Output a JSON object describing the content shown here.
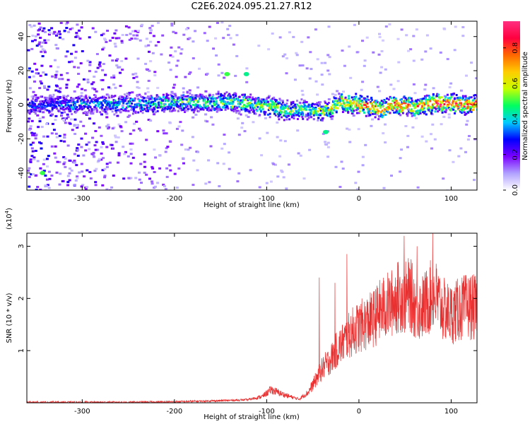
{
  "title": "C2E6.2024.095.21.27.R12",
  "chart_data": [
    {
      "type": "heatmap",
      "title": "C2E6.2024.095.21.27.R12",
      "xlabel": "Height of straight line (km)",
      "ylabel": "Frequency (Hz)",
      "xlim": [
        -360,
        128
      ],
      "ylim": [
        -50,
        49
      ],
      "xticks": [
        -300,
        -200,
        -100,
        0,
        100
      ],
      "yticks": [
        -40,
        -20,
        0,
        20,
        40
      ],
      "colorbar": {
        "label": "Normalized spectral amplitude",
        "range": [
          0.0,
          0.95
        ],
        "ticks": [
          0.0,
          0.2,
          0.4,
          0.6,
          0.8
        ],
        "colors": [
          "#ffffff",
          "#b0a0ff",
          "#7a00ff",
          "#0000ff",
          "#00ccff",
          "#00ff60",
          "#c8ff00",
          "#ffcc00",
          "#ff6600",
          "#ff0040",
          "#ff3080"
        ]
      },
      "ridge": {
        "description": "main spectral line near 0 Hz",
        "x": [
          -360,
          -300,
          -250,
          -200,
          -150,
          -120,
          -100,
          -80,
          -60,
          -40,
          -20,
          0,
          20,
          40,
          60,
          80,
          100,
          128
        ],
        "freq_hz": [
          0,
          1,
          1,
          2,
          2,
          1,
          0,
          -3,
          -2,
          -4,
          2,
          1,
          -2,
          1,
          -1,
          2,
          1,
          1
        ],
        "amplitude": [
          0.35,
          0.4,
          0.45,
          0.5,
          0.55,
          0.6,
          0.65,
          0.6,
          0.55,
          0.6,
          0.75,
          0.8,
          0.85,
          0.85,
          0.8,
          0.9,
          0.92,
          0.85
        ]
      },
      "spots": [
        {
          "x": -143,
          "freq_hz": 18,
          "amplitude": 0.5
        },
        {
          "x": -122,
          "freq_hz": 18,
          "amplitude": 0.45
        },
        {
          "x": -343,
          "freq_hz": -40,
          "amplitude": 0.5
        },
        {
          "x": -36,
          "freq_hz": -16,
          "amplitude": 0.45
        }
      ]
    },
    {
      "type": "line",
      "xlabel": "Height of straight line (km)",
      "ylabel": "SNR (10 * v/v)",
      "y_multiplier_label": "(x10",
      "y_multiplier_exp": "4",
      "y_multiplier_close": ")",
      "xlim": [
        -360,
        128
      ],
      "ylim": [
        0,
        3.25
      ],
      "xticks": [
        -300,
        -200,
        -100,
        0,
        100
      ],
      "yticks": [
        1,
        2,
        3
      ],
      "color": "#e83030",
      "series": [
        {
          "name": "SNR",
          "x": [
            -360,
            -300,
            -250,
            -200,
            -150,
            -120,
            -105,
            -95,
            -85,
            -75,
            -65,
            -55,
            -48,
            -42,
            -35,
            -30,
            -25,
            -20,
            -15,
            -10,
            -5,
            0,
            5,
            10,
            15,
            20,
            25,
            30,
            35,
            40,
            45,
            50,
            55,
            60,
            65,
            70,
            75,
            80,
            85,
            90,
            95,
            100,
            110,
            120,
            128
          ],
          "y": [
            0.01,
            0.01,
            0.01,
            0.02,
            0.04,
            0.06,
            0.12,
            0.25,
            0.18,
            0.12,
            0.07,
            0.2,
            0.4,
            0.6,
            0.75,
            0.85,
            1.0,
            1.1,
            1.2,
            1.3,
            1.4,
            1.45,
            1.5,
            1.55,
            1.6,
            1.7,
            1.8,
            1.85,
            1.9,
            2.0,
            2.05,
            2.0,
            2.1,
            1.9,
            1.8,
            1.85,
            1.95,
            2.1,
            2.0,
            1.8,
            1.75,
            1.7,
            1.8,
            1.85,
            1.8
          ],
          "peaks": [
            {
              "x": -43,
              "y": 2.4
            },
            {
              "x": -26,
              "y": 2.3
            },
            {
              "x": -13,
              "y": 2.85
            },
            {
              "x": 49,
              "y": 3.2
            },
            {
              "x": 63,
              "y": 3.0
            },
            {
              "x": 80,
              "y": 3.25
            }
          ]
        }
      ]
    }
  ]
}
